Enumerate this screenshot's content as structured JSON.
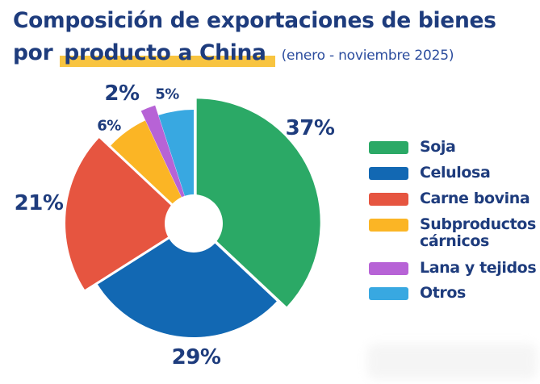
{
  "header": {
    "title_line1": "Composición de exportaciones de bienes",
    "title_line2_prefix": "por ",
    "title_line2_highlight": "producto a China",
    "period": "(enero - noviembre 2025)"
  },
  "colors": {
    "navy_text": "#1E3C7D",
    "period_text": "#2C4D9E",
    "highlight_yellow": "#F8C440",
    "background": "#FFFFFF"
  },
  "chart_data": {
    "type": "pie",
    "donut": true,
    "title": "Composición de exportaciones de bienes por producto a China (enero - noviembre 2025)",
    "unit": "%",
    "start_angle_deg": 0,
    "direction": "clockwise",
    "legend_position": "right",
    "slices": [
      {
        "label": "Soja",
        "value": 37,
        "color": "#2BA966",
        "exploded": true
      },
      {
        "label": "Celulosa",
        "value": 29,
        "color": "#1268B3",
        "exploded": false
      },
      {
        "label": "Carne bovina",
        "value": 21,
        "color": "#E65540",
        "exploded": true
      },
      {
        "label": "Subproductos cárnicos",
        "value": 6,
        "color": "#FBB525",
        "exploded": false
      },
      {
        "label": "Lana y tejidos",
        "value": 2,
        "color": "#B763D6",
        "exploded": true
      },
      {
        "label": "Otros",
        "value": 5,
        "color": "#38A8E1",
        "exploded": false
      }
    ]
  }
}
